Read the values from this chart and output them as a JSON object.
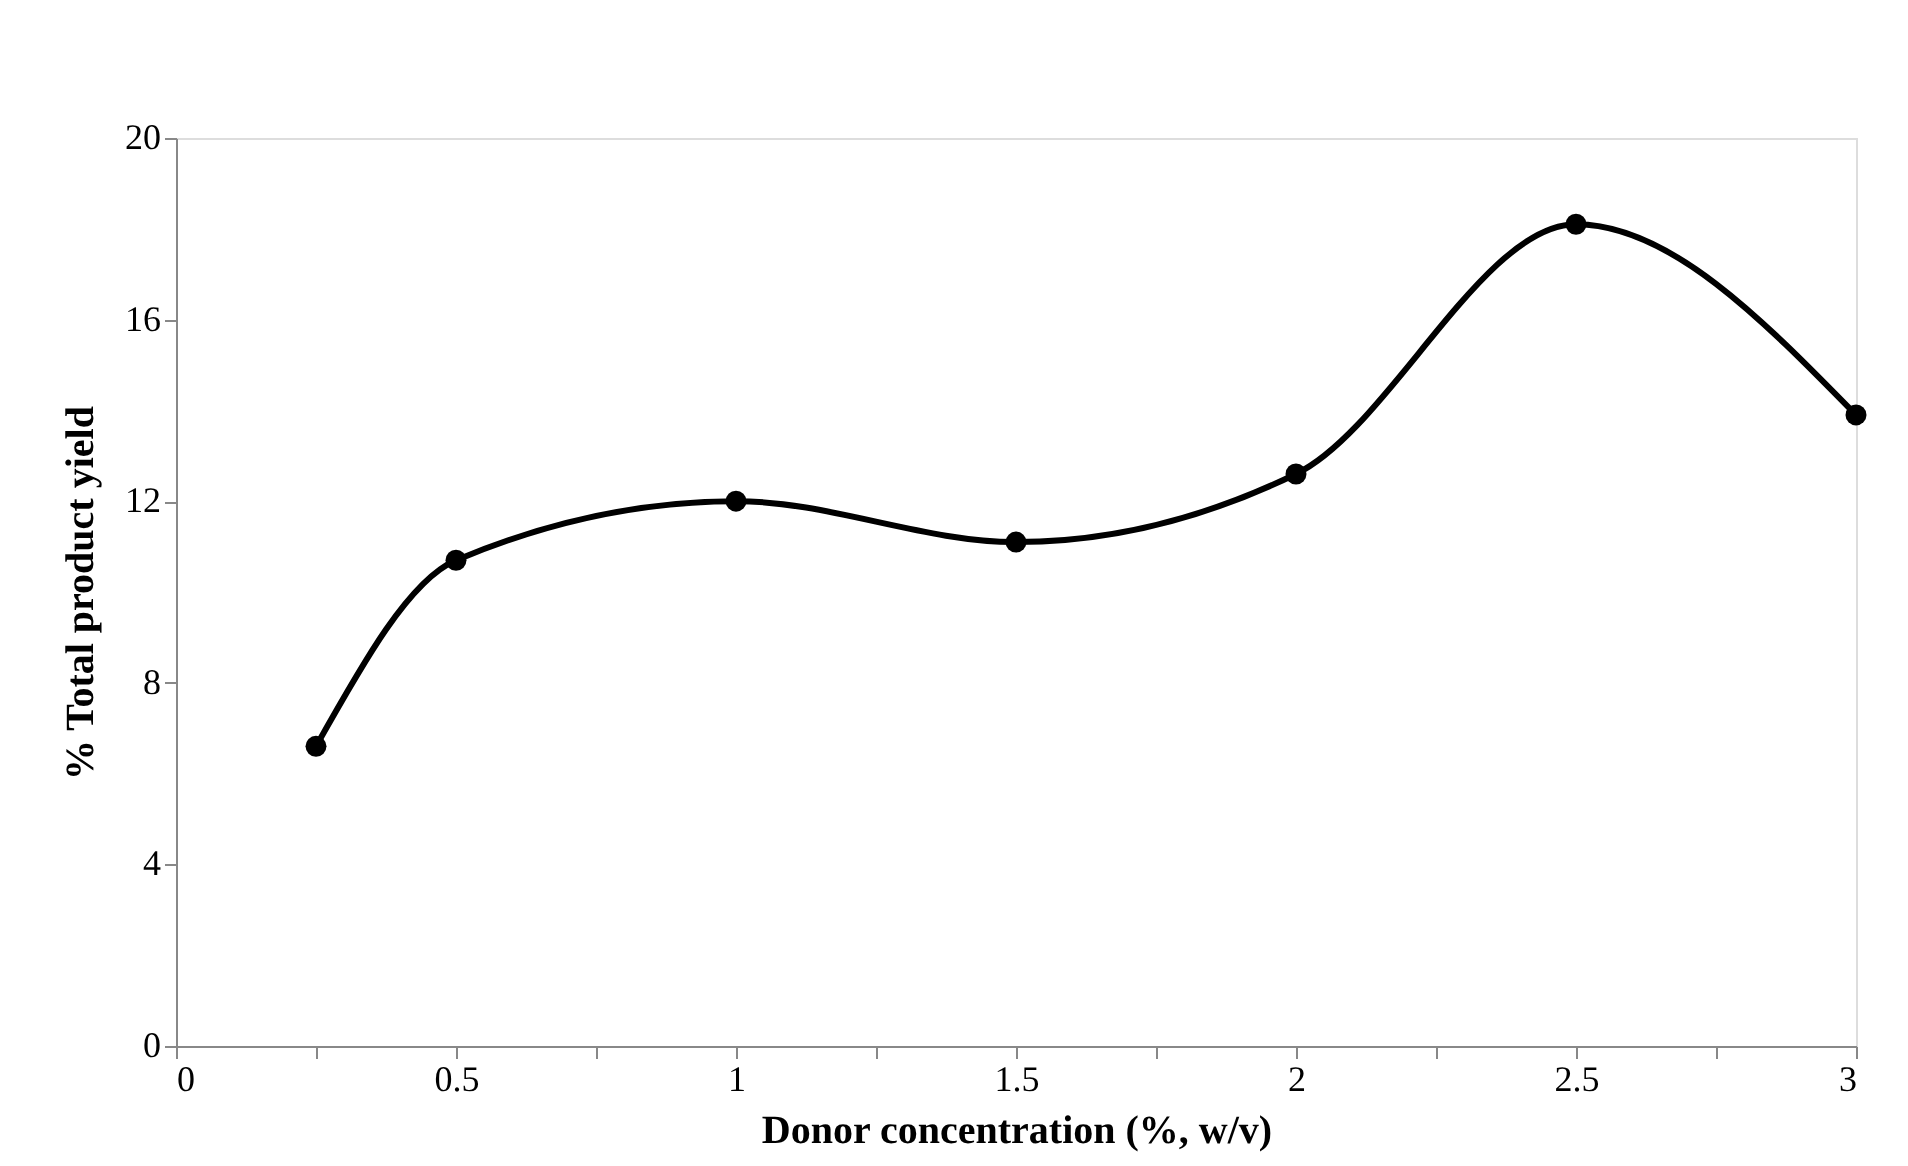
{
  "chart_data": {
    "type": "line",
    "xlabel": "Donor concentration (%, w/v)",
    "ylabel": "% Total product yield",
    "x": [
      0.25,
      0.5,
      1,
      1.5,
      2,
      2.5,
      3
    ],
    "series": [
      {
        "color": "#000000",
        "values": [
          6.6,
          10.7,
          12.0,
          11.1,
          12.6,
          18.1,
          13.9
        ]
      }
    ],
    "xlim": [
      0,
      3
    ],
    "xticks": [
      0,
      {
        "value": 0.25,
        "label": null
      },
      0.5,
      {
        "value": 0.75,
        "label": null
      },
      1,
      {
        "value": 1.25,
        "label": null
      },
      1.5,
      {
        "value": 1.75,
        "label": null
      },
      2,
      {
        "value": 2.25,
        "label": null
      },
      2.5,
      {
        "value": 2.75,
        "label": null
      },
      3
    ],
    "ylim": [
      0,
      20
    ],
    "yticks": [
      0,
      4,
      8,
      12,
      16,
      20
    ],
    "grid": false,
    "marker": "circle",
    "line_style": "solid"
  }
}
